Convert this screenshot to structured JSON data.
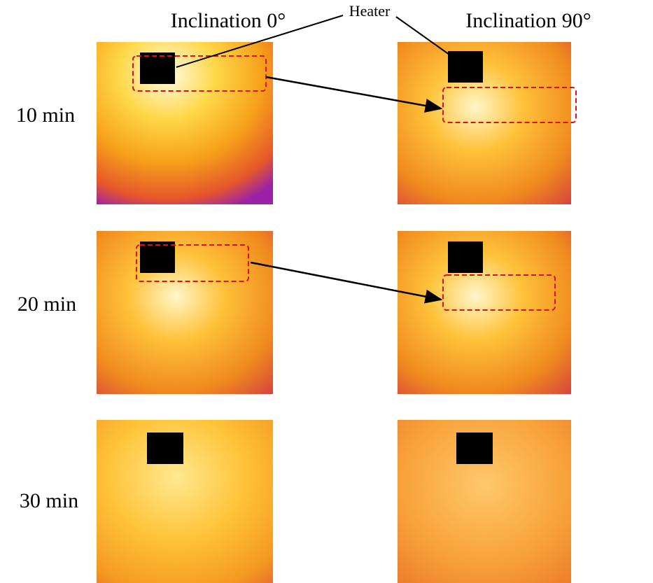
{
  "columns": [
    "Inclination 0°",
    "Inclination 90°"
  ],
  "rows": [
    "10 min",
    "20 min",
    "30 min"
  ],
  "annotation": "Heater"
}
